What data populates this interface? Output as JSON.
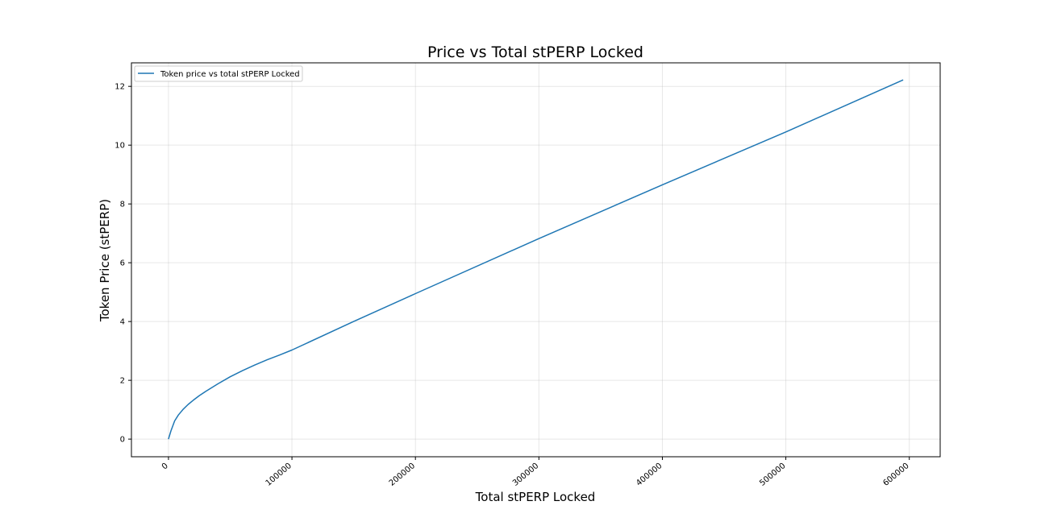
{
  "chart_data": {
    "type": "line",
    "title": "Price vs Total stPERP Locked",
    "xlabel": "Total stPERP Locked",
    "ylabel": "Token Price (stPERP)",
    "xlim": [
      -30000,
      625000
    ],
    "ylim": [
      -0.6,
      12.8
    ],
    "xticks": [
      0,
      100000,
      200000,
      300000,
      400000,
      500000,
      600000
    ],
    "xtick_labels": [
      "0",
      "100000",
      "200000",
      "300000",
      "400000",
      "500000",
      "600000"
    ],
    "yticks": [
      0,
      2,
      4,
      6,
      8,
      10,
      12
    ],
    "ytick_labels": [
      "0",
      "2",
      "4",
      "6",
      "8",
      "10",
      "12"
    ],
    "grid": true,
    "legend_position": "top-left",
    "colors": {
      "series": "#1f77b4"
    },
    "series": [
      {
        "name": "Token price vs total stPERP Locked",
        "x": [
          0,
          2000,
          5000,
          8000,
          12000,
          16000,
          20000,
          25000,
          30000,
          40000,
          50000,
          60000,
          70000,
          80000,
          90000,
          100000,
          150000,
          200000,
          300000,
          400000,
          500000,
          595000
        ],
        "y": [
          0,
          0.28,
          0.62,
          0.82,
          1.02,
          1.18,
          1.32,
          1.48,
          1.62,
          1.88,
          2.12,
          2.33,
          2.52,
          2.7,
          2.86,
          3.03,
          4.0,
          4.95,
          6.82,
          8.65,
          10.45,
          12.22
        ]
      }
    ]
  }
}
